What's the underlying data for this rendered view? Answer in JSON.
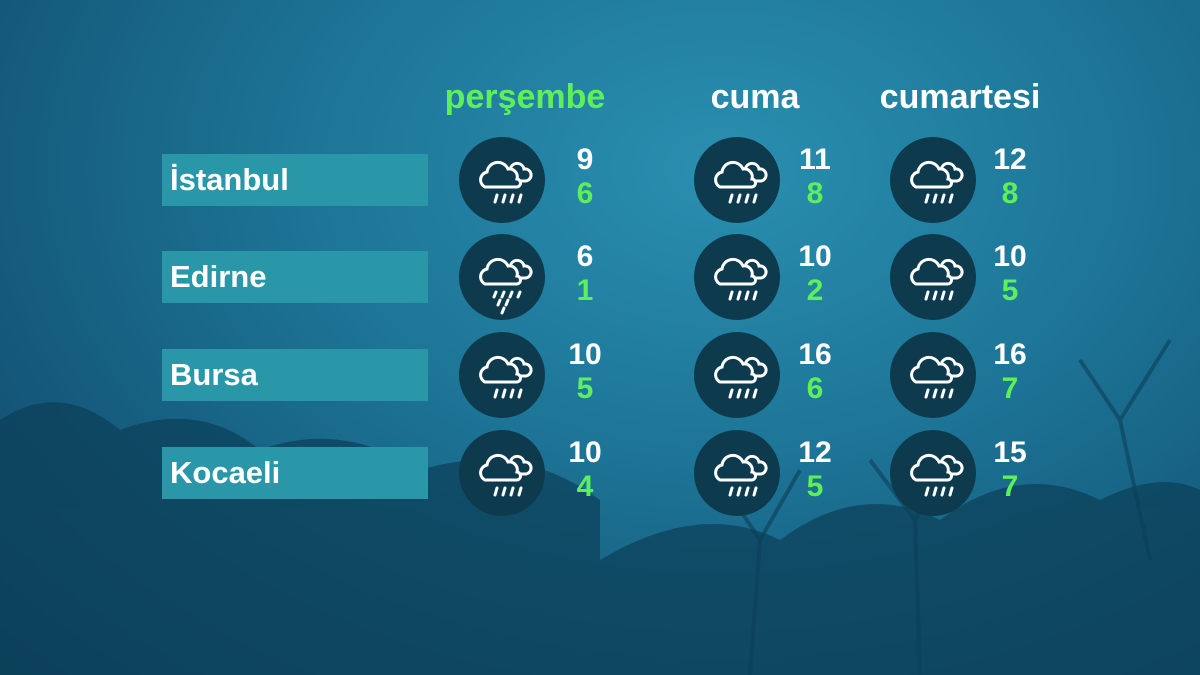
{
  "colors": {
    "today": "#5ef05a",
    "low": "#5ef05a",
    "high": "#ffffff",
    "city_bar": "#2a97a8",
    "icon_bg": "#0e3a4e"
  },
  "days": [
    "perşembe",
    "cuma",
    "cumartesi"
  ],
  "cities": [
    {
      "name": "İstanbul",
      "forecast": [
        {
          "icon": "rain-cloud-icon",
          "high": "9",
          "low": "6"
        },
        {
          "icon": "rain-cloud-icon",
          "high": "11",
          "low": "8"
        },
        {
          "icon": "rain-cloud-icon",
          "high": "12",
          "low": "8"
        }
      ]
    },
    {
      "name": "Edirne",
      "forecast": [
        {
          "icon": "heavy-rain-cloud-icon",
          "high": "6",
          "low": "1"
        },
        {
          "icon": "rain-cloud-icon",
          "high": "10",
          "low": "2"
        },
        {
          "icon": "rain-cloud-icon",
          "high": "10",
          "low": "5"
        }
      ]
    },
    {
      "name": "Bursa",
      "forecast": [
        {
          "icon": "rain-cloud-icon",
          "high": "10",
          "low": "5"
        },
        {
          "icon": "rain-cloud-icon",
          "high": "16",
          "low": "6"
        },
        {
          "icon": "rain-cloud-icon",
          "high": "16",
          "low": "7"
        }
      ]
    },
    {
      "name": "Kocaeli",
      "forecast": [
        {
          "icon": "rain-cloud-icon",
          "high": "10",
          "low": "4"
        },
        {
          "icon": "rain-cloud-icon",
          "high": "12",
          "low": "5"
        },
        {
          "icon": "rain-cloud-icon",
          "high": "15",
          "low": "7"
        }
      ]
    }
  ]
}
